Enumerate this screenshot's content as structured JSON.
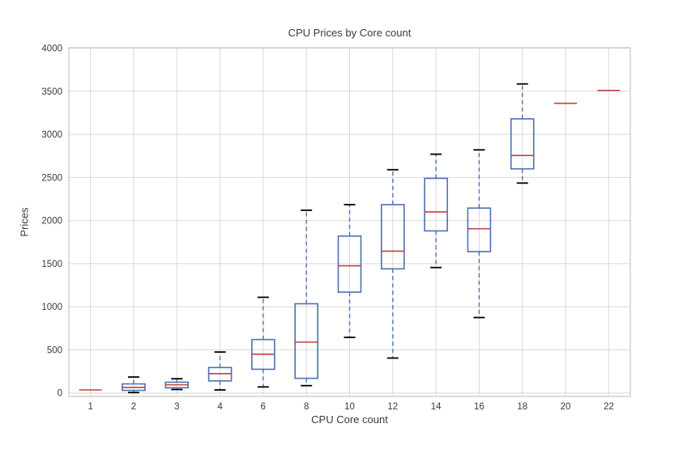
{
  "chart_data": {
    "type": "boxplot",
    "title": "CPU Prices by Core count",
    "xlabel": "CPU Core count",
    "ylabel": "Prices",
    "categories": [
      "1",
      "2",
      "3",
      "4",
      "6",
      "8",
      "10",
      "12",
      "14",
      "16",
      "18",
      "20",
      "22"
    ],
    "yticks": [
      0,
      500,
      1000,
      1500,
      2000,
      2500,
      3000,
      3500,
      4000
    ],
    "ylim": [
      -40,
      4005
    ],
    "grid": true,
    "legend": "none",
    "series": [
      {
        "core_count": "1",
        "low": 35,
        "q1": 35,
        "median": 35,
        "q3": 35,
        "high": 35
      },
      {
        "core_count": "2",
        "low": 5,
        "q1": 30,
        "median": 65,
        "q3": 105,
        "high": 185
      },
      {
        "core_count": "3",
        "low": 40,
        "q1": 60,
        "median": 95,
        "q3": 125,
        "high": 165
      },
      {
        "core_count": "4",
        "low": 35,
        "q1": 140,
        "median": 225,
        "q3": 295,
        "high": 475
      },
      {
        "core_count": "6",
        "low": 70,
        "q1": 275,
        "median": 450,
        "q3": 620,
        "high": 1110
      },
      {
        "core_count": "8",
        "low": 85,
        "q1": 170,
        "median": 590,
        "q3": 1035,
        "high": 2120
      },
      {
        "core_count": "10",
        "low": 645,
        "q1": 1170,
        "median": 1475,
        "q3": 1820,
        "high": 2185
      },
      {
        "core_count": "12",
        "low": 405,
        "q1": 1440,
        "median": 1645,
        "q3": 2185,
        "high": 2590
      },
      {
        "core_count": "14",
        "low": 1455,
        "q1": 1880,
        "median": 2100,
        "q3": 2490,
        "high": 2770
      },
      {
        "core_count": "16",
        "low": 875,
        "q1": 1640,
        "median": 1905,
        "q3": 2145,
        "high": 2820
      },
      {
        "core_count": "18",
        "low": 2435,
        "q1": 2600,
        "median": 2755,
        "q3": 3180,
        "high": 3585
      },
      {
        "core_count": "20",
        "low": 3360,
        "q1": 3360,
        "median": 3360,
        "q3": 3360,
        "high": 3360
      },
      {
        "core_count": "22",
        "low": 3510,
        "q1": 3510,
        "median": 3510,
        "q3": 3510,
        "high": 3510
      }
    ],
    "colors": {
      "box": "#4c72b0",
      "whisker": "#4c72b0",
      "median": "#c04040",
      "cap": "#000000",
      "grid": "#d9d9d9",
      "spine": "#c5c5c5",
      "text": "#3a3a3a",
      "background": "#ffffff"
    }
  }
}
